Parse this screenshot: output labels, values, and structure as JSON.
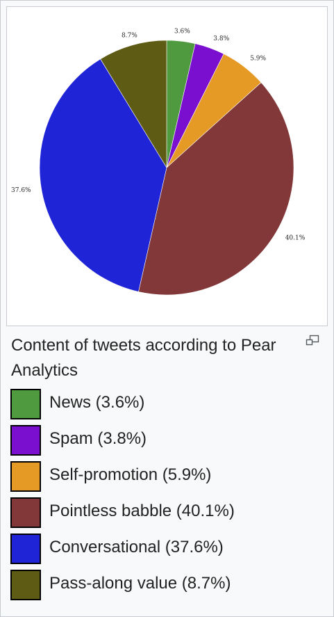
{
  "caption": "Content of tweets according to Pear Analytics",
  "icons": {
    "enlarge": "magnify-icon"
  },
  "chart_data": {
    "type": "pie",
    "title": "",
    "slices": [
      {
        "label": "News",
        "value": 3.6,
        "data_label": "3.6%",
        "legend": "News (3.6%)",
        "color": "#4f9a3e"
      },
      {
        "label": "Spam",
        "value": 3.8,
        "data_label": "3.8%",
        "legend": "Spam (3.8%)",
        "color": "#7b0fcf"
      },
      {
        "label": "Self-promotion",
        "value": 5.9,
        "data_label": "5.9%",
        "legend": "Self-promotion (5.9%)",
        "color": "#e69a26"
      },
      {
        "label": "Pointless babble",
        "value": 40.1,
        "data_label": "40.1%",
        "legend": "Pointless babble (40.1%)",
        "color": "#823839"
      },
      {
        "label": "Conversational",
        "value": 37.6,
        "data_label": "37.6%",
        "legend": "Conversational (37.6%)",
        "color": "#1f24d6"
      },
      {
        "label": "Pass-along value",
        "value": 8.7,
        "data_label": "8.7%",
        "legend": "Pass-along value (8.7%)",
        "color": "#5e5c14"
      }
    ],
    "start": "12 o'clock",
    "direction": "clockwise",
    "legend_position": "bottom"
  }
}
